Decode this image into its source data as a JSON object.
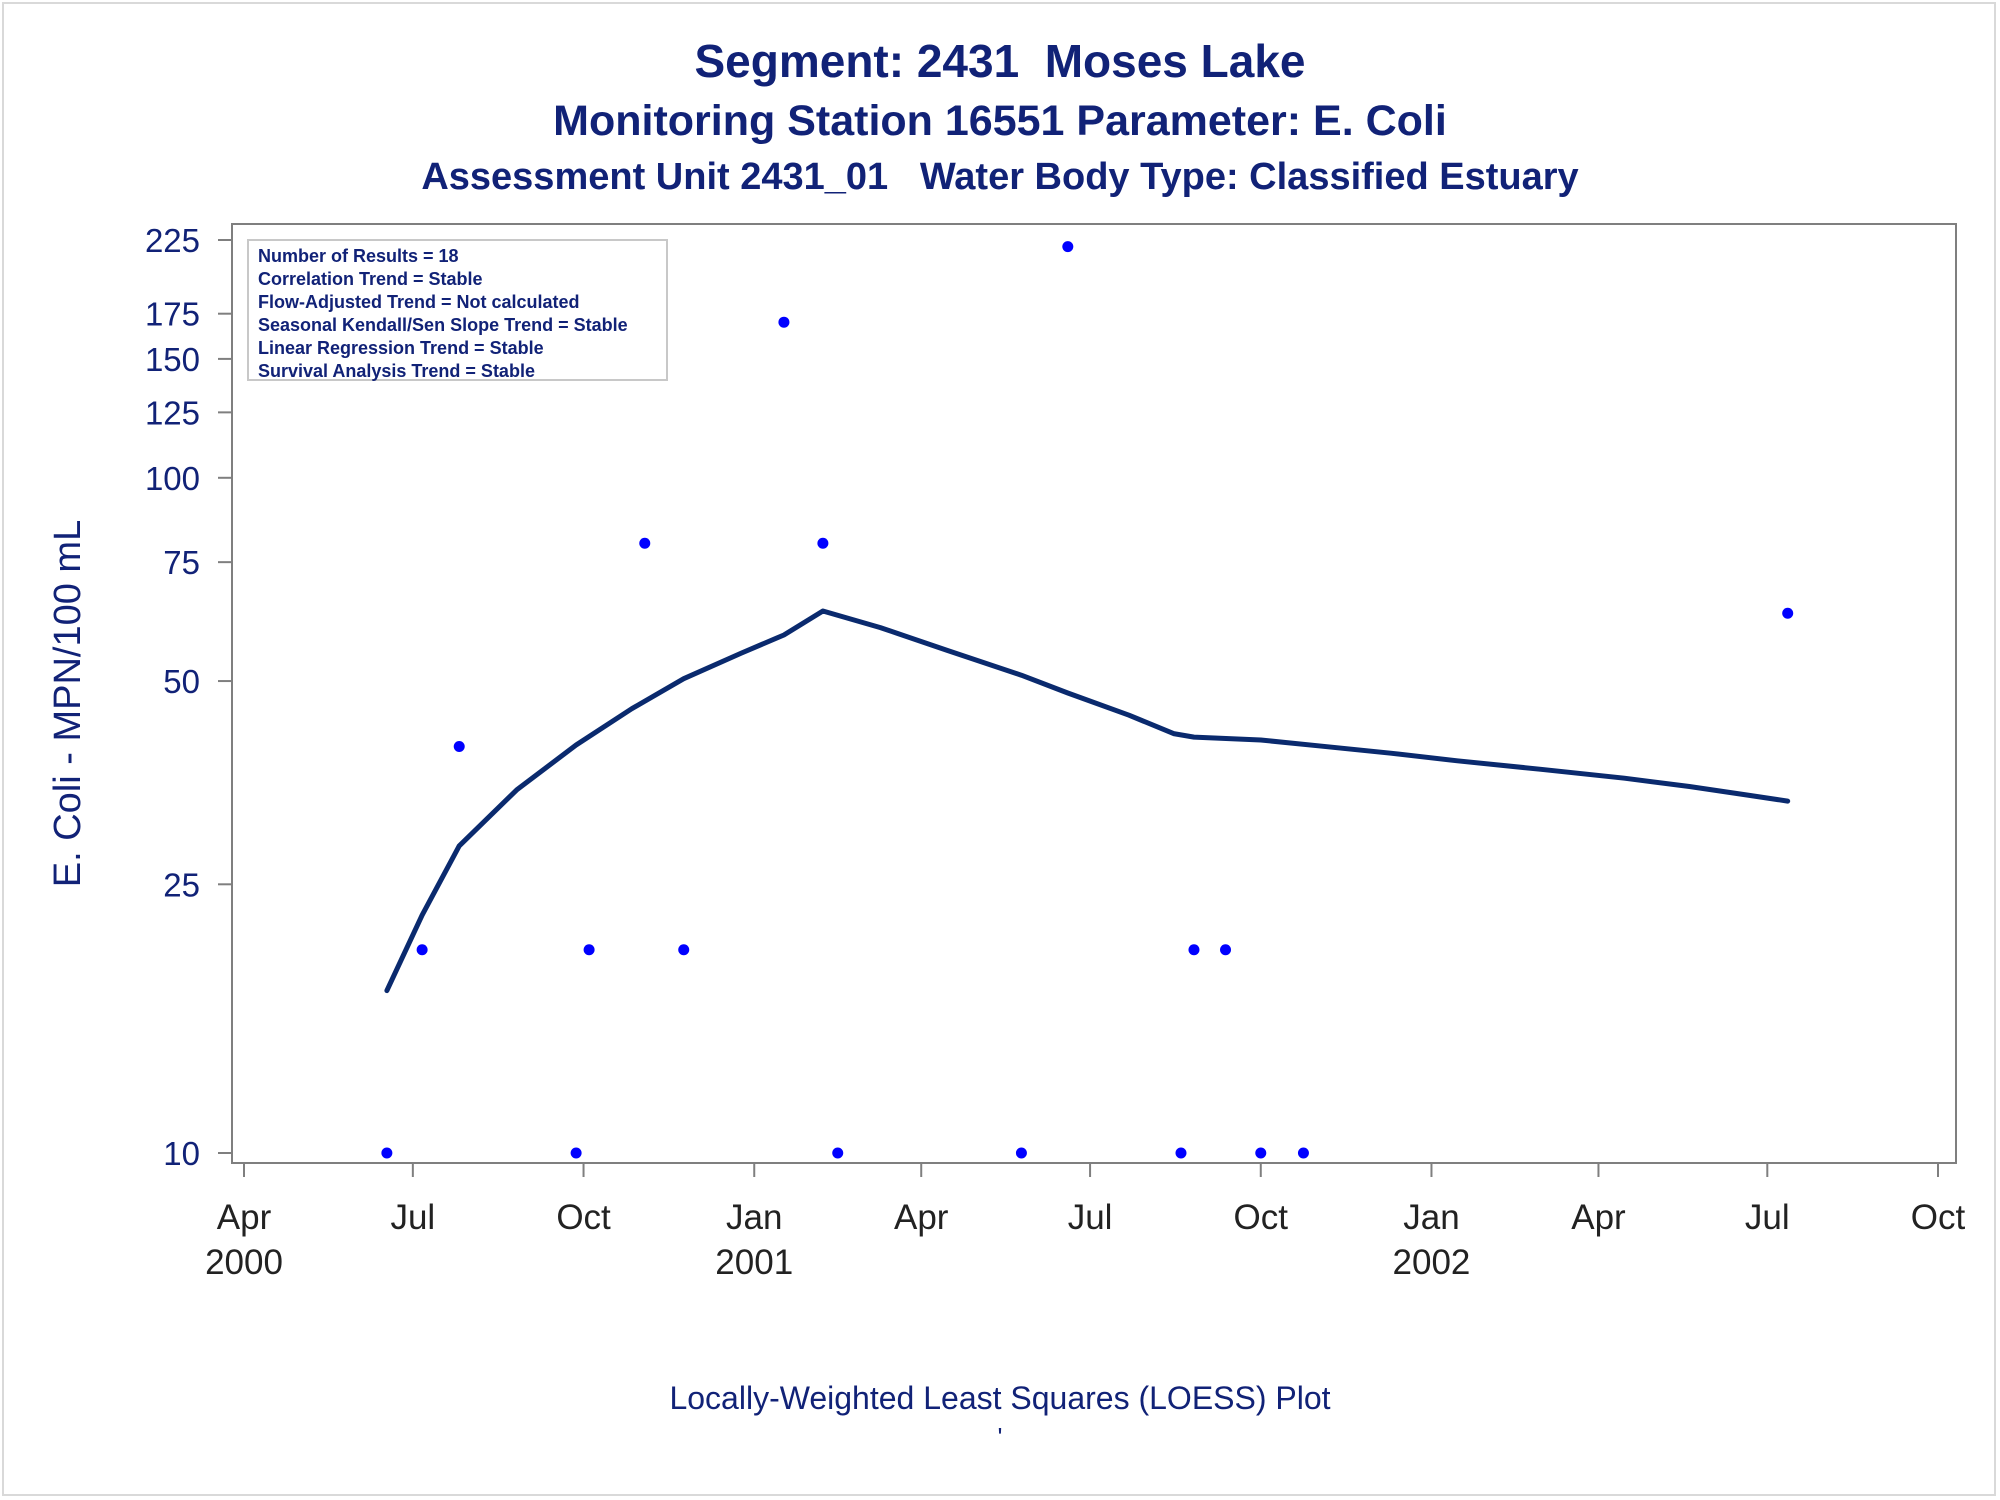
{
  "titles": {
    "line1": "Segment: 2431  Moses Lake",
    "line2": "Monitoring Station 16551 Parameter: E. Coli",
    "line3": "Assessment Unit 2431_01   Water Body Type: Classified Estuary"
  },
  "info_box": [
    "Number of Results = 18",
    "Correlation Trend = Stable",
    "Flow-Adjusted Trend = Not calculated",
    "Seasonal Kendall/Sen Slope Trend = Stable",
    "Linear Regression Trend = Stable",
    "Survival Analysis Trend = Stable"
  ],
  "footnote": {
    "line1": "Locally-Weighted Least Squares (LOESS) Plot",
    "line2": "'"
  },
  "colors": {
    "title": "#112277",
    "points": "#0000ff",
    "loess_line": "#0a2a6e",
    "axis": "#7f7f7f",
    "frame": "#d9d9d9"
  },
  "chart_data": {
    "type": "scatter",
    "ylabel": "E. Coli - MPN/100 mL",
    "y_scale": "log",
    "ylim": [
      10,
      225
    ],
    "y_ticks": [
      10,
      25,
      50,
      75,
      100,
      125,
      150,
      175,
      225
    ],
    "xlim": [
      "2000-04-01",
      "2002-10-01"
    ],
    "x_ticks": [
      {
        "date": "2000-04-01",
        "label": "Apr",
        "year": "2000"
      },
      {
        "date": "2000-07-01",
        "label": "Jul",
        "year": ""
      },
      {
        "date": "2000-10-01",
        "label": "Oct",
        "year": ""
      },
      {
        "date": "2001-01-01",
        "label": "Jan",
        "year": "2001"
      },
      {
        "date": "2001-04-01",
        "label": "Apr",
        "year": ""
      },
      {
        "date": "2001-07-01",
        "label": "Jul",
        "year": ""
      },
      {
        "date": "2001-10-01",
        "label": "Oct",
        "year": ""
      },
      {
        "date": "2002-01-01",
        "label": "Jan",
        "year": "2002"
      },
      {
        "date": "2002-04-01",
        "label": "Apr",
        "year": ""
      },
      {
        "date": "2002-07-01",
        "label": "Jul",
        "year": ""
      },
      {
        "date": "2002-10-01",
        "label": "Oct",
        "year": ""
      }
    ],
    "grid": false,
    "points": [
      {
        "x": "2000-06-17",
        "y": 10
      },
      {
        "x": "2000-07-06",
        "y": 20
      },
      {
        "x": "2000-07-26",
        "y": 40
      },
      {
        "x": "2000-09-27",
        "y": 10
      },
      {
        "x": "2000-10-04",
        "y": 20
      },
      {
        "x": "2000-11-03",
        "y": 80
      },
      {
        "x": "2000-11-24",
        "y": 20
      },
      {
        "x": "2001-01-17",
        "y": 170
      },
      {
        "x": "2001-02-07",
        "y": 80
      },
      {
        "x": "2001-02-15",
        "y": 10
      },
      {
        "x": "2001-05-25",
        "y": 10
      },
      {
        "x": "2001-06-19",
        "y": 220
      },
      {
        "x": "2001-08-19",
        "y": 10
      },
      {
        "x": "2001-08-26",
        "y": 20
      },
      {
        "x": "2001-09-12",
        "y": 20
      },
      {
        "x": "2001-10-01",
        "y": 10
      },
      {
        "x": "2001-10-24",
        "y": 10
      },
      {
        "x": "2002-07-12",
        "y": 63
      }
    ],
    "loess_line": [
      {
        "x": "2000-06-17",
        "y": 17.4
      },
      {
        "x": "2000-07-06",
        "y": 22.5
      },
      {
        "x": "2000-07-26",
        "y": 28.5
      },
      {
        "x": "2000-08-26",
        "y": 34.5
      },
      {
        "x": "2000-09-27",
        "y": 40.2
      },
      {
        "x": "2000-10-27",
        "y": 45.5
      },
      {
        "x": "2000-11-24",
        "y": 50.4
      },
      {
        "x": "2000-12-25",
        "y": 55
      },
      {
        "x": "2001-01-17",
        "y": 58.5
      },
      {
        "x": "2001-02-07",
        "y": 63.5
      },
      {
        "x": "2001-03-10",
        "y": 60
      },
      {
        "x": "2001-04-15",
        "y": 55.5
      },
      {
        "x": "2001-05-25",
        "y": 51
      },
      {
        "x": "2001-06-19",
        "y": 48
      },
      {
        "x": "2001-07-22",
        "y": 44.5
      },
      {
        "x": "2001-08-15",
        "y": 41.8
      },
      {
        "x": "2001-08-26",
        "y": 41.3
      },
      {
        "x": "2001-10-01",
        "y": 40.9
      },
      {
        "x": "2001-11-01",
        "y": 40.1
      },
      {
        "x": "2001-12-10",
        "y": 39.1
      },
      {
        "x": "2002-01-15",
        "y": 38.1
      },
      {
        "x": "2002-03-01",
        "y": 37
      },
      {
        "x": "2002-04-15",
        "y": 35.9
      },
      {
        "x": "2002-05-20",
        "y": 34.9
      },
      {
        "x": "2002-06-20",
        "y": 33.9
      },
      {
        "x": "2002-07-12",
        "y": 33.2
      }
    ]
  }
}
